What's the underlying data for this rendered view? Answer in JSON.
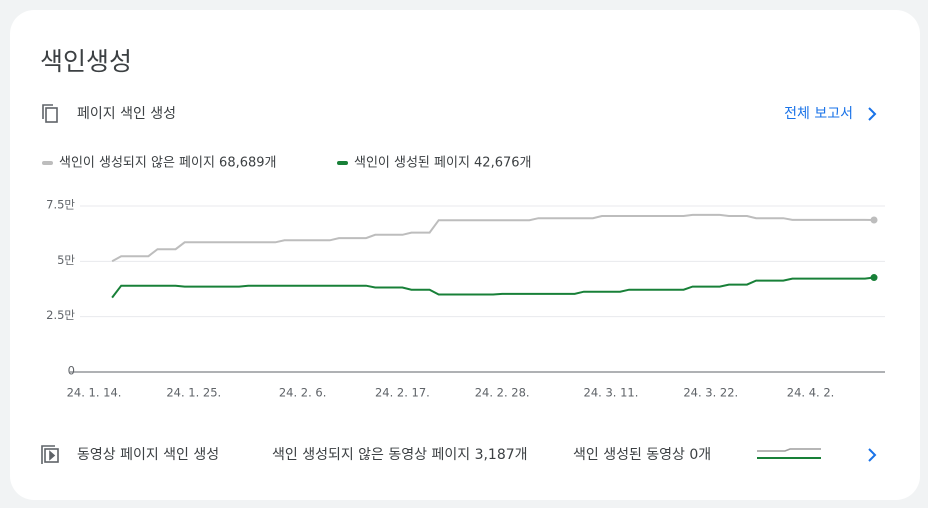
{
  "header": {
    "title": "색인생성"
  },
  "section": {
    "title": "페이지 색인 생성",
    "link": "전체 보고서"
  },
  "chart_data": {
    "type": "line",
    "categories": [
      "24. 1. 14.",
      null,
      null,
      null,
      null,
      null,
      null,
      null,
      null,
      null,
      null,
      "24. 1. 25.",
      null,
      null,
      null,
      null,
      null,
      null,
      null,
      null,
      null,
      null,
      null,
      "24. 2. 6.",
      null,
      null,
      null,
      null,
      null,
      null,
      null,
      null,
      null,
      null,
      "24. 2. 17.",
      null,
      null,
      null,
      null,
      null,
      null,
      null,
      null,
      null,
      null,
      "24. 2. 28.",
      null,
      null,
      null,
      null,
      null,
      null,
      null,
      null,
      null,
      null,
      null,
      "24. 3. 11.",
      null,
      null,
      null,
      null,
      null,
      null,
      null,
      null,
      null,
      null,
      "24. 3. 22.",
      null,
      null,
      null,
      null,
      null,
      null,
      null,
      null,
      null,
      null,
      "24. 4. 2.",
      null,
      null,
      null,
      null,
      null,
      null,
      null
    ],
    "series": [
      {
        "name": "색인이 생성되지 않은 페이지 68,689개",
        "color": "#bdbdbd",
        "values": [
          null,
          null,
          50000,
          52300,
          52300,
          52300,
          52300,
          55500,
          55500,
          55500,
          58600,
          58600,
          58600,
          58600,
          58600,
          58600,
          58600,
          58600,
          58600,
          58600,
          58600,
          59500,
          59500,
          59500,
          59500,
          59500,
          59500,
          60500,
          60500,
          60500,
          60500,
          62000,
          62000,
          62000,
          62000,
          63000,
          63000,
          63000,
          68600,
          68600,
          68600,
          68600,
          68600,
          68600,
          68600,
          68600,
          68600,
          68600,
          68600,
          69500,
          69500,
          69500,
          69500,
          69500,
          69500,
          69500,
          70500,
          70500,
          70500,
          70500,
          70500,
          70500,
          70500,
          70500,
          70500,
          70500,
          71000,
          71000,
          71000,
          71000,
          70500,
          70500,
          70500,
          69500,
          69500,
          69500,
          69500,
          68700,
          68700,
          68700,
          68700,
          68700,
          68700,
          68700,
          68700,
          68700,
          68689
        ]
      },
      {
        "name": "색인이 생성된 페이지 42,676개",
        "color": "#188038",
        "values": [
          null,
          null,
          33600,
          39000,
          39000,
          39000,
          39000,
          39000,
          39000,
          39000,
          38600,
          38600,
          38600,
          38600,
          38600,
          38600,
          38600,
          39000,
          39000,
          39000,
          39000,
          39000,
          39000,
          39000,
          39000,
          39000,
          39000,
          39000,
          39000,
          39000,
          39000,
          38200,
          38200,
          38200,
          38200,
          37200,
          37200,
          37200,
          35000,
          35000,
          35000,
          35000,
          35000,
          35000,
          35000,
          35300,
          35300,
          35300,
          35300,
          35300,
          35300,
          35300,
          35300,
          35300,
          36300,
          36300,
          36300,
          36300,
          36300,
          37200,
          37200,
          37200,
          37200,
          37200,
          37200,
          37200,
          38600,
          38600,
          38600,
          38600,
          39500,
          39500,
          39500,
          41300,
          41300,
          41300,
          41300,
          42200,
          42200,
          42200,
          42200,
          42200,
          42200,
          42200,
          42200,
          42200,
          42676
        ]
      }
    ],
    "ylim": [
      0,
      75000
    ],
    "yticks": [
      0,
      {
        "value": 25000,
        "label": "2.5만"
      },
      {
        "value": 50000,
        "label": "5만"
      },
      {
        "value": 75000,
        "label": "7.5만"
      }
    ],
    "grid": true
  },
  "video": {
    "title": "동영상 페이지 색인 생성",
    "not_indexed": "색인 생성되지 않은 동영상 페이지 3,187개",
    "indexed": "색인 생성된 동영상 0개"
  }
}
